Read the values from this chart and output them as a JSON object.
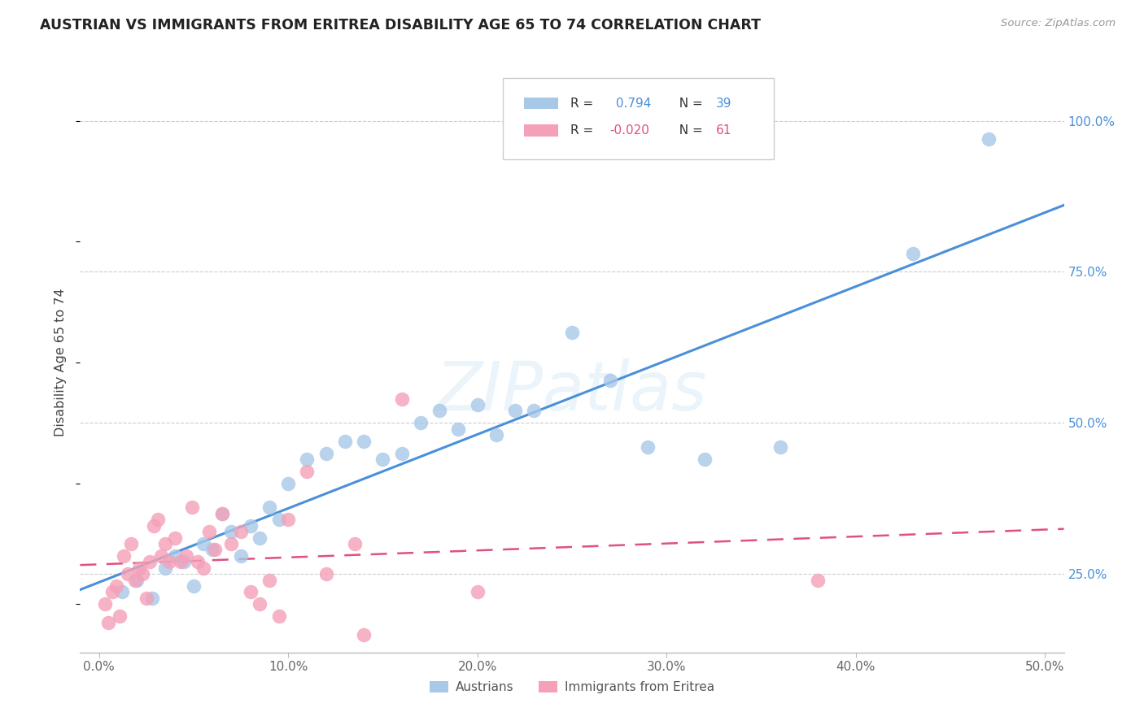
{
  "title": "AUSTRIAN VS IMMIGRANTS FROM ERITREA DISABILITY AGE 65 TO 74 CORRELATION CHART",
  "source": "Source: ZipAtlas.com",
  "ylabel": "Disability Age 65 to 74",
  "x_tick_labels": [
    "0.0%",
    "10.0%",
    "20.0%",
    "30.0%",
    "40.0%",
    "50.0%"
  ],
  "x_tick_values": [
    0,
    10,
    20,
    30,
    40,
    50
  ],
  "y_tick_labels": [
    "25.0%",
    "50.0%",
    "75.0%",
    "100.0%"
  ],
  "y_tick_values": [
    25,
    50,
    75,
    100
  ],
  "xlim": [
    -1,
    51
  ],
  "ylim": [
    12,
    108
  ],
  "legend_label1": "Austrians",
  "legend_label2": "Immigrants from Eritrea",
  "blue_color": "#a8c8e8",
  "pink_color": "#f4a0b8",
  "blue_line_color": "#4a90d9",
  "pink_line_color": "#e05080",
  "watermark": "ZIPatlas",
  "austrians_x": [
    1.2,
    2.0,
    2.8,
    3.5,
    4.0,
    4.5,
    5.0,
    5.5,
    6.0,
    6.5,
    7.0,
    7.5,
    8.0,
    8.5,
    9.0,
    9.5,
    10.0,
    11.0,
    12.0,
    13.0,
    14.0,
    15.0,
    16.0,
    17.0,
    18.0,
    19.0,
    20.0,
    21.0,
    22.0,
    23.0,
    25.0,
    27.0,
    29.0,
    32.0,
    36.0,
    43.0,
    47.0
  ],
  "austrians_y": [
    22,
    24,
    21,
    26,
    28,
    27,
    23,
    30,
    29,
    35,
    32,
    28,
    33,
    31,
    36,
    34,
    40,
    44,
    45,
    47,
    47,
    44,
    45,
    50,
    52,
    49,
    53,
    48,
    52,
    52,
    65,
    57,
    46,
    44,
    46,
    78,
    97
  ],
  "eritrea_x": [
    0.3,
    0.5,
    0.7,
    0.9,
    1.1,
    1.3,
    1.5,
    1.7,
    1.9,
    2.1,
    2.3,
    2.5,
    2.7,
    2.9,
    3.1,
    3.3,
    3.5,
    3.7,
    4.0,
    4.3,
    4.6,
    4.9,
    5.2,
    5.5,
    5.8,
    6.1,
    6.5,
    7.0,
    7.5,
    8.0,
    8.5,
    9.0,
    9.5,
    10.0,
    11.0,
    12.0,
    13.5,
    14.0,
    16.0,
    20.0,
    38.0
  ],
  "eritrea_y": [
    20,
    17,
    22,
    23,
    18,
    28,
    25,
    30,
    24,
    26,
    25,
    21,
    27,
    33,
    34,
    28,
    30,
    27,
    31,
    27,
    28,
    36,
    27,
    26,
    32,
    29,
    35,
    30,
    32,
    22,
    20,
    24,
    18,
    34,
    42,
    25,
    30,
    15,
    54,
    22,
    24
  ]
}
